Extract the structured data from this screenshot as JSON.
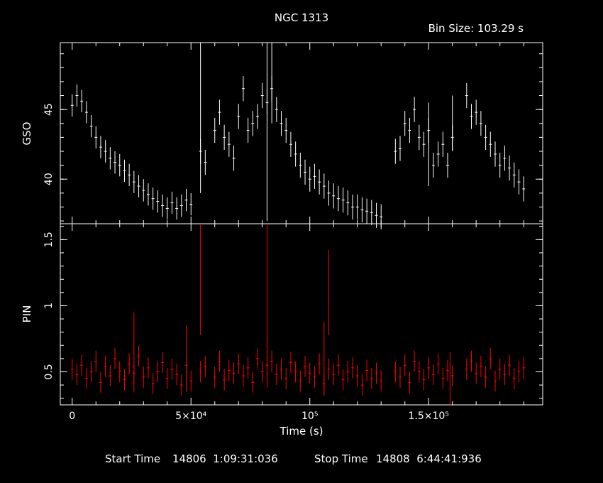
{
  "title": "NGC 1313",
  "bin_size": "Bin Size: 103.29 s",
  "footer": {
    "start_label": "Start Time",
    "start_value": "14806  1:09:31:036",
    "stop_label": "Stop Time",
    "stop_value": "14808  6:44:41:936"
  },
  "colors": {
    "background": "#000000",
    "axes": "#ffffff",
    "gso_series": "#ffffff",
    "pin_series": "#ff0000"
  },
  "chart_data": [
    {
      "type": "scatter",
      "panel": "top",
      "ylabel": "GSO",
      "xlabel": "",
      "xlim": [
        -5000,
        198000
      ],
      "ylim": [
        36.8,
        49.8
      ],
      "yticks": [
        40,
        45
      ],
      "ytick_labels": [
        "40",
        "45"
      ],
      "grid": false,
      "error_bars": true,
      "series": [
        {
          "values_x": [
            0,
            2000,
            4000,
            6000,
            8000,
            10000,
            12000,
            14000,
            16000,
            18000,
            20000,
            22000,
            24000,
            26000,
            28000,
            30000,
            32000,
            34000,
            36000,
            38000,
            40000,
            42000,
            44000,
            46000,
            48000,
            50000,
            54000,
            56000,
            60000,
            62000,
            64000,
            66000,
            68000,
            70000,
            72000,
            74000,
            76000,
            78000,
            80000,
            82000,
            84000,
            86000,
            88000,
            90000,
            92000,
            94000,
            96000,
            98000,
            100000,
            102000,
            104000,
            106000,
            108000,
            110000,
            112000,
            114000,
            116000,
            118000,
            120000,
            122000,
            124000,
            126000,
            128000,
            130000,
            136000,
            138000,
            140000,
            142000,
            144000,
            146000,
            148000,
            150000,
            152000,
            154000,
            156000,
            158000,
            160000,
            166000,
            168000,
            170000,
            172000,
            174000,
            176000,
            178000,
            180000,
            182000,
            184000,
            186000,
            188000,
            190000
          ],
          "values_y": [
            45.3,
            46.0,
            45.6,
            44.8,
            43.8,
            43.0,
            42.3,
            42.0,
            41.5,
            41.2,
            41.0,
            40.6,
            40.3,
            39.8,
            39.5,
            39.2,
            38.9,
            38.6,
            38.4,
            38.1,
            37.9,
            38.3,
            37.9,
            38.1,
            38.5,
            38.2,
            42.0,
            41.2,
            43.5,
            44.8,
            43.0,
            42.5,
            41.5,
            44.5,
            46.5,
            43.5,
            44.0,
            44.5,
            46.0,
            45.5,
            46.5,
            45.0,
            44.0,
            43.5,
            42.5,
            41.8,
            41.0,
            40.5,
            40.0,
            40.2,
            39.8,
            39.5,
            39.0,
            38.8,
            38.6,
            38.5,
            38.3,
            38.0,
            38.0,
            37.8,
            37.7,
            37.6,
            37.4,
            37.3,
            42.0,
            42.2,
            44.0,
            43.5,
            45.0,
            43.0,
            42.5,
            43.5,
            41.0,
            41.8,
            42.5,
            41.0,
            43.0,
            46.0,
            44.5,
            44.8,
            44.0,
            43.0,
            42.5,
            41.8,
            41.0,
            41.5,
            40.8,
            40.3,
            39.8,
            39.3
          ],
          "errors": [
            0.8,
            0.8,
            0.8,
            0.8,
            0.8,
            0.8,
            0.8,
            0.8,
            0.8,
            0.8,
            0.8,
            0.8,
            0.8,
            0.8,
            0.8,
            0.8,
            0.8,
            0.8,
            0.8,
            0.8,
            0.8,
            0.8,
            0.8,
            0.8,
            0.8,
            0.8,
            0.9,
            0.9,
            0.9,
            0.9,
            0.9,
            0.9,
            0.9,
            0.9,
            0.9,
            0.9,
            0.9,
            0.9,
            0.9,
            0.9,
            0.9,
            0.9,
            0.9,
            0.9,
            0.9,
            0.9,
            0.9,
            0.9,
            0.9,
            0.9,
            0.9,
            0.9,
            0.9,
            0.9,
            0.9,
            0.9,
            0.9,
            0.9,
            0.9,
            0.9,
            0.9,
            0.9,
            0.9,
            0.9,
            0.9,
            0.9,
            0.9,
            0.9,
            0.9,
            0.9,
            0.9,
            0.9,
            0.9,
            0.9,
            0.9,
            0.9,
            0.9,
            0.9,
            0.9,
            0.9,
            0.9,
            0.9,
            0.9,
            0.9,
            0.9,
            0.9,
            0.9,
            0.9,
            0.9,
            0.9
          ],
          "large_error_x": [
            54000,
            82000,
            84000,
            150000,
            160000
          ],
          "large_error_y": [
            45.0,
            45.0,
            47.0,
            42.5,
            44.0
          ],
          "large_error_size": [
            6.0,
            8.0,
            3.0,
            3.0,
            2.0
          ]
        }
      ]
    },
    {
      "type": "scatter",
      "panel": "bottom",
      "ylabel": "PIN",
      "xlabel": "Time (s)",
      "xlim": [
        -5000,
        198000
      ],
      "ylim": [
        0.25,
        1.62
      ],
      "yticks": [
        0.5,
        1,
        1.5
      ],
      "ytick_labels": [
        "0.5",
        "1",
        "1.5"
      ],
      "xticks": [
        0,
        50000,
        100000,
        150000
      ],
      "xtick_labels": [
        "0",
        "5×10⁴",
        "10⁵",
        "1.5×10⁵"
      ],
      "grid": false,
      "error_bars": true,
      "series": [
        {
          "values_x": [
            0,
            2000,
            4000,
            6000,
            8000,
            10000,
            12000,
            14000,
            16000,
            18000,
            20000,
            22000,
            24000,
            26000,
            28000,
            30000,
            32000,
            34000,
            36000,
            38000,
            40000,
            42000,
            44000,
            46000,
            48000,
            50000,
            54000,
            56000,
            60000,
            62000,
            64000,
            66000,
            68000,
            70000,
            72000,
            74000,
            76000,
            78000,
            80000,
            82000,
            84000,
            86000,
            88000,
            90000,
            92000,
            94000,
            96000,
            98000,
            100000,
            102000,
            104000,
            106000,
            108000,
            110000,
            112000,
            114000,
            116000,
            118000,
            120000,
            122000,
            124000,
            126000,
            128000,
            130000,
            136000,
            138000,
            140000,
            142000,
            144000,
            146000,
            148000,
            150000,
            152000,
            154000,
            156000,
            158000,
            160000,
            166000,
            168000,
            170000,
            172000,
            174000,
            176000,
            178000,
            180000,
            182000,
            184000,
            186000,
            188000,
            190000
          ],
          "values_y": [
            0.52,
            0.48,
            0.55,
            0.45,
            0.5,
            0.58,
            0.42,
            0.54,
            0.47,
            0.6,
            0.5,
            0.44,
            0.56,
            0.49,
            0.62,
            0.46,
            0.53,
            0.41,
            0.5,
            0.57,
            0.45,
            0.52,
            0.48,
            0.4,
            0.55,
            0.43,
            0.5,
            0.54,
            0.46,
            0.58,
            0.44,
            0.51,
            0.49,
            0.56,
            0.47,
            0.53,
            0.42,
            0.6,
            0.5,
            0.55,
            0.58,
            0.48,
            0.52,
            0.45,
            0.57,
            0.5,
            0.43,
            0.54,
            0.49,
            0.46,
            0.56,
            0.41,
            0.52,
            0.48,
            0.55,
            0.44,
            0.5,
            0.53,
            0.47,
            0.4,
            0.51,
            0.45,
            0.49,
            0.43,
            0.5,
            0.46,
            0.55,
            0.42,
            0.58,
            0.5,
            0.44,
            0.53,
            0.48,
            0.56,
            0.45,
            0.51,
            0.47,
            0.52,
            0.58,
            0.49,
            0.54,
            0.46,
            0.6,
            0.43,
            0.52,
            0.48,
            0.55,
            0.45,
            0.5,
            0.53
          ],
          "errors": [
            0.08,
            0.08,
            0.08,
            0.08,
            0.08,
            0.08,
            0.08,
            0.08,
            0.08,
            0.08,
            0.08,
            0.08,
            0.08,
            0.08,
            0.08,
            0.08,
            0.08,
            0.08,
            0.08,
            0.08,
            0.08,
            0.08,
            0.08,
            0.08,
            0.08,
            0.08,
            0.08,
            0.08,
            0.08,
            0.08,
            0.08,
            0.08,
            0.08,
            0.08,
            0.08,
            0.08,
            0.08,
            0.08,
            0.08,
            0.08,
            0.08,
            0.08,
            0.08,
            0.08,
            0.08,
            0.08,
            0.08,
            0.08,
            0.08,
            0.08,
            0.08,
            0.08,
            0.08,
            0.08,
            0.08,
            0.08,
            0.08,
            0.08,
            0.08,
            0.08,
            0.08,
            0.08,
            0.08,
            0.08,
            0.08,
            0.08,
            0.08,
            0.08,
            0.08,
            0.08,
            0.08,
            0.08,
            0.08,
            0.08,
            0.08,
            0.08,
            0.08,
            0.08,
            0.08,
            0.08,
            0.08,
            0.08,
            0.08,
            0.08,
            0.08,
            0.08,
            0.08,
            0.08,
            0.08,
            0.08
          ],
          "large_error_x": [
            26000,
            48000,
            54000,
            82000,
            106000,
            108000,
            159000
          ],
          "large_error_y": [
            0.65,
            0.6,
            1.2,
            1.0,
            0.6,
            1.1,
            0.45
          ],
          "large_error_size": [
            0.3,
            0.25,
            0.42,
            0.62,
            0.28,
            0.32,
            0.2
          ]
        }
      ]
    }
  ]
}
